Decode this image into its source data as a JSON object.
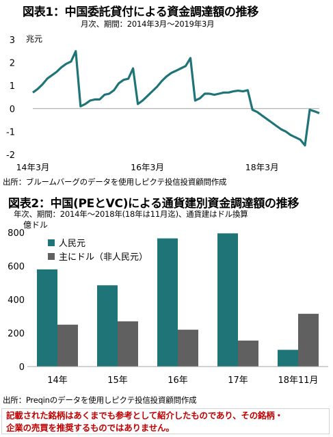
{
  "chart_data": [
    {
      "type": "line",
      "title": "図表1：中国委託貸付による資金調達額の推移",
      "subtitle": "月次、期間：2014年3月～2019年3月",
      "ylabel": "兆元",
      "ylim": [
        -2,
        3
      ],
      "yticks": [
        "3",
        "2",
        "1",
        "0",
        "-1",
        "-2"
      ],
      "xtick_labels": [
        "14年3月",
        "16年3月",
        "18年3月"
      ],
      "xlim": [
        "2014-03",
        "2019-03"
      ],
      "zero_line": true,
      "series": [
        {
          "color": "#1f7478",
          "points": [
            [
              "2014-03",
              0.7
            ],
            [
              "2014-04",
              0.85
            ],
            [
              "2014-05",
              1.05
            ],
            [
              "2014-06",
              1.3
            ],
            [
              "2014-07",
              1.45
            ],
            [
              "2014-08",
              1.6
            ],
            [
              "2014-09",
              1.8
            ],
            [
              "2014-10",
              1.95
            ],
            [
              "2014-11",
              2.05
            ],
            [
              "2014-12",
              2.5
            ],
            [
              "2015-01",
              0.1
            ],
            [
              "2015-02",
              0.2
            ],
            [
              "2015-03",
              0.35
            ],
            [
              "2015-04",
              0.4
            ],
            [
              "2015-05",
              0.4
            ],
            [
              "2015-06",
              0.6
            ],
            [
              "2015-07",
              0.65
            ],
            [
              "2015-08",
              0.8
            ],
            [
              "2015-09",
              1.1
            ],
            [
              "2015-10",
              1.25
            ],
            [
              "2015-11",
              1.3
            ],
            [
              "2015-12",
              1.75
            ],
            [
              "2016-01",
              0.2
            ],
            [
              "2016-02",
              0.35
            ],
            [
              "2016-03",
              0.55
            ],
            [
              "2016-04",
              0.75
            ],
            [
              "2016-05",
              0.95
            ],
            [
              "2016-06",
              1.2
            ],
            [
              "2016-07",
              1.4
            ],
            [
              "2016-08",
              1.55
            ],
            [
              "2016-09",
              1.65
            ],
            [
              "2016-10",
              1.75
            ],
            [
              "2016-11",
              1.85
            ],
            [
              "2016-12",
              2.2
            ],
            [
              "2017-01",
              0.35
            ],
            [
              "2017-02",
              0.45
            ],
            [
              "2017-03",
              0.65
            ],
            [
              "2017-04",
              0.65
            ],
            [
              "2017-05",
              0.6
            ],
            [
              "2017-06",
              0.65
            ],
            [
              "2017-07",
              0.7
            ],
            [
              "2017-08",
              0.7
            ],
            [
              "2017-09",
              0.75
            ],
            [
              "2017-10",
              0.78
            ],
            [
              "2017-11",
              0.75
            ],
            [
              "2017-12",
              0.8
            ],
            [
              "2018-01",
              -0.05
            ],
            [
              "2018-02",
              -0.15
            ],
            [
              "2018-03",
              -0.3
            ],
            [
              "2018-04",
              -0.45
            ],
            [
              "2018-05",
              -0.6
            ],
            [
              "2018-06",
              -0.75
            ],
            [
              "2018-07",
              -0.9
            ],
            [
              "2018-08",
              -1.0
            ],
            [
              "2018-09",
              -1.15
            ],
            [
              "2018-10",
              -1.25
            ],
            [
              "2018-11",
              -1.35
            ],
            [
              "2018-12",
              -1.6
            ],
            [
              "2019-01",
              -0.05
            ],
            [
              "2019-02",
              -0.12
            ],
            [
              "2019-03",
              -0.2
            ]
          ]
        }
      ],
      "source": "出所：ブルームバーグのデータを使用しピクテ投信投資顧問作成"
    },
    {
      "type": "bar",
      "title": "図表2：中国(PEとVC)による通貨建別資金調達額の推移",
      "subtitle": "年次、期間：2014年～2018年(18年は11月迄)、通貨建はドル換算",
      "ylabel": "億ドル",
      "ylim": [
        0,
        800
      ],
      "yticks": [
        "800",
        "600",
        "400",
        "200",
        "0"
      ],
      "categories": [
        "14年",
        "15年",
        "16年",
        "17年",
        "18年11月"
      ],
      "legend_position": "top-left",
      "series": [
        {
          "name": "人民元",
          "color": "#1f7478",
          "values": [
            580,
            485,
            765,
            795,
            100
          ]
        },
        {
          "name": "主にドル（非人民元）",
          "color": "#606060",
          "values": [
            250,
            270,
            220,
            155,
            315
          ]
        }
      ],
      "source": "出所：Preqinのデータを使用しピクテ投信投資顧問作成"
    }
  ],
  "disclaimer": {
    "line1": "記載された銘柄はあくまでも参考として紹介したものであり、その銘柄・",
    "line2": "企業の売買を推奨するものではありません。"
  }
}
